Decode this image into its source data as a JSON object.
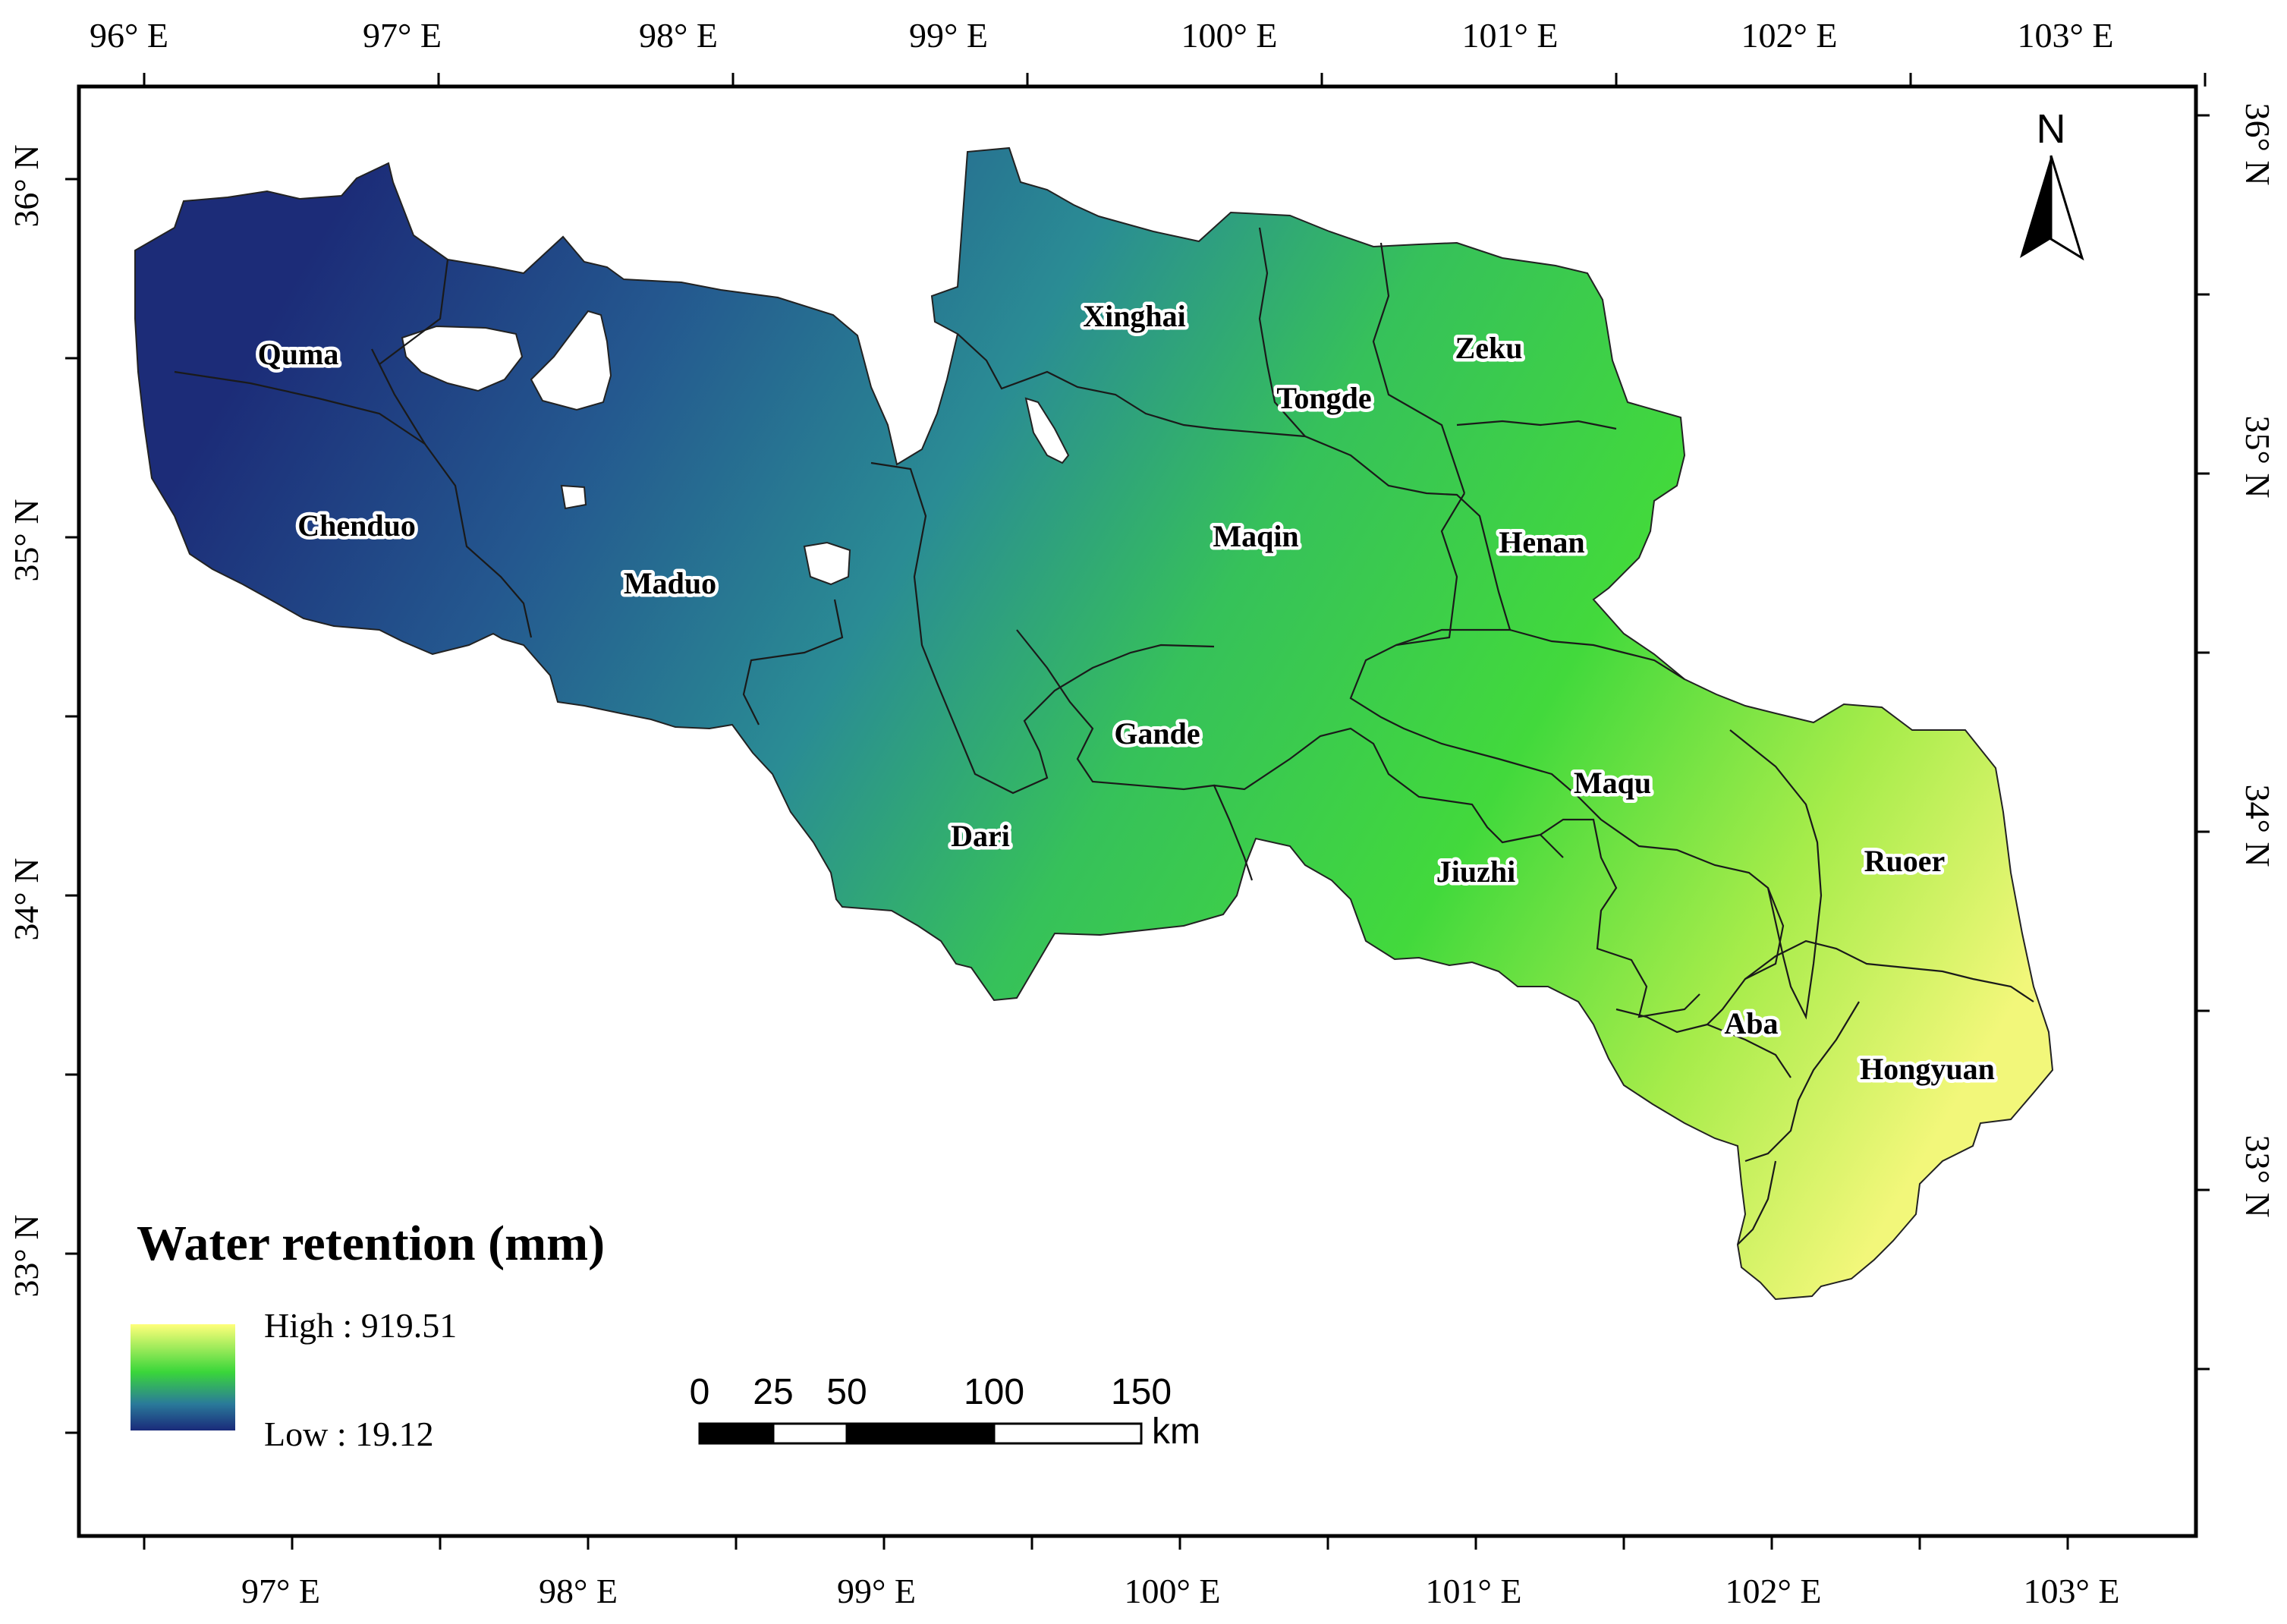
{
  "map": {
    "top_lon_ticks": [
      "96° E",
      "97° E",
      "98° E",
      "99° E",
      "100° E",
      "101° E",
      "102° E",
      "103° E"
    ],
    "bottom_lon_ticks": [
      "97° E",
      "98° E",
      "99° E",
      "100° E",
      "101° E",
      "102° E",
      "103° E"
    ],
    "left_lat_ticks": [
      "36° N",
      "35° N",
      "34° N",
      "33° N"
    ],
    "right_lat_ticks": [
      "36° N",
      "35° N",
      "34° N",
      "33° N"
    ],
    "counties": [
      "Quma",
      "Chenduo",
      "Maduo",
      "Xinghai",
      "Tongde",
      "Zeku",
      "Henan",
      "Maqin",
      "Gande",
      "Dari",
      "Jiuzhi",
      "Maqu",
      "Ruoer",
      "Aba",
      "Hongyuan"
    ],
    "north_arrow": {
      "label": "N",
      "icon": "north-arrow-icon"
    },
    "legend": {
      "title": "Water retention (mm)",
      "high_label": "High : 919.51",
      "low_label": "Low  : 19.12",
      "colors": {
        "high": "#ffff7a",
        "mid": "#3ad63a",
        "low": "#1a2a7a"
      }
    },
    "scale_bar": {
      "labels": [
        "0",
        "25",
        "50",
        "100",
        "150"
      ],
      "unit": "km"
    }
  }
}
